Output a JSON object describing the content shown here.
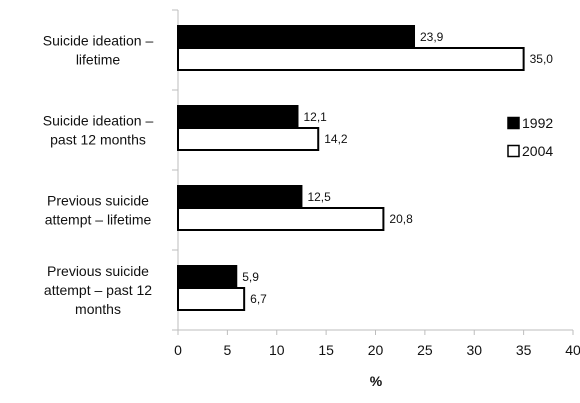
{
  "chart_data": {
    "type": "bar",
    "orientation": "horizontal",
    "categories": [
      [
        "Suicide ideation –",
        "lifetime"
      ],
      [
        "Suicide ideation –",
        "past 12 months"
      ],
      [
        "Previous suicide",
        "attempt – lifetime"
      ],
      [
        "Previous suicide",
        "attempt – past 12",
        "months"
      ]
    ],
    "series": [
      {
        "name": "1992",
        "values": [
          23.9,
          12.1,
          12.5,
          5.9
        ],
        "labels": [
          "23,9",
          "12,1",
          "12,5",
          "5,9"
        ],
        "fill": "#000000"
      },
      {
        "name": "2004",
        "values": [
          35.0,
          14.2,
          20.8,
          6.7
        ],
        "labels": [
          "35,0",
          "14,2",
          "20,8",
          "6,7"
        ],
        "fill": "#ffffff"
      }
    ],
    "xlabel": "%",
    "xlim": [
      0,
      40
    ],
    "xticks": [
      0,
      5,
      10,
      15,
      20,
      25,
      30,
      35,
      40
    ],
    "grid": false,
    "legend_position": "right"
  }
}
